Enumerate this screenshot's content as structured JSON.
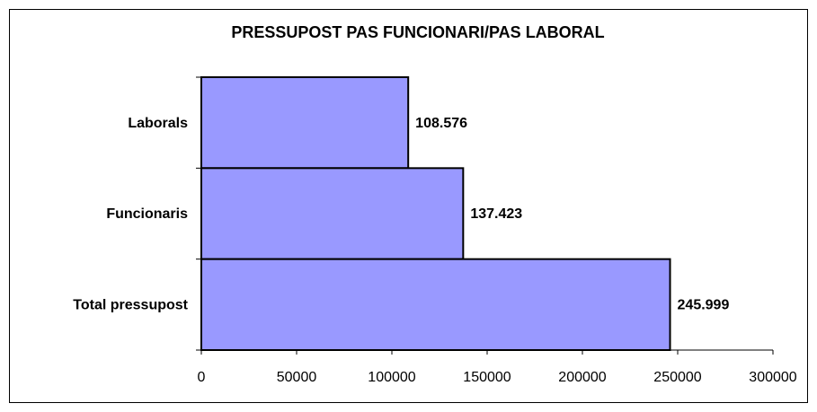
{
  "chart_data": {
    "type": "hbar",
    "title": "PRESSUPOST PAS FUNCIONARI/PAS LABORAL",
    "categories": [
      "Laborals",
      "Funcionaris",
      "Total pressupost"
    ],
    "values": [
      108576,
      137423,
      245999
    ],
    "value_labels": [
      "108.576",
      "137.423",
      "245.999"
    ],
    "color": "#9999ff",
    "xlim": [
      0,
      300000
    ],
    "xticks": [
      0,
      50000,
      100000,
      150000,
      200000,
      250000,
      300000
    ]
  }
}
